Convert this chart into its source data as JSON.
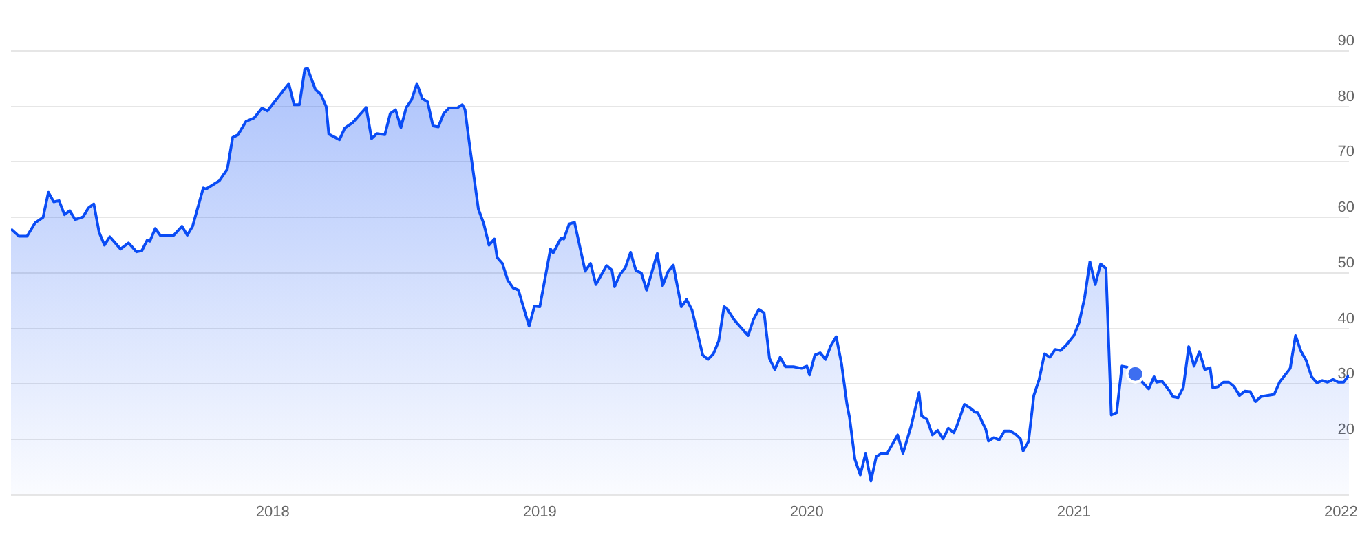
{
  "chart_data": {
    "type": "area",
    "xlim": [
      2017.02,
      2022.03
    ],
    "xticks": [
      2018,
      2019,
      2020,
      2021,
      2022
    ],
    "ylim": [
      10,
      90
    ],
    "yticks": [
      {
        "value": 10,
        "label": null
      },
      20,
      30,
      40,
      50,
      60,
      70,
      80,
      90
    ],
    "grid": "y",
    "marker": "none",
    "series": [
      {
        "color": "#0a4cf5",
        "x": [
          2017.02,
          2017.05,
          2017.08,
          2017.11,
          2017.14,
          2017.16,
          2017.18,
          2017.2,
          2017.22,
          2017.24,
          2017.26,
          2017.29,
          2017.31,
          2017.33,
          2017.35,
          2017.37,
          2017.39,
          2017.43,
          2017.46,
          2017.49,
          2017.51,
          2017.53,
          2017.54,
          2017.56,
          2017.58,
          2017.63,
          2017.66,
          2017.68,
          2017.7,
          2017.74,
          2017.75,
          2017.78,
          2017.8,
          2017.83,
          2017.85,
          2017.87,
          2017.9,
          2017.93,
          2017.96,
          2017.98,
          2018.06,
          2018.08,
          2018.1,
          2018.12,
          2018.13,
          2018.16,
          2018.18,
          2018.2,
          2018.21,
          2018.25,
          2018.27,
          2018.3,
          2018.35,
          2018.37,
          2018.39,
          2018.42,
          2018.44,
          2018.46,
          2018.48,
          2018.5,
          2018.52,
          2018.54,
          2018.56,
          2018.58,
          2018.6,
          2018.62,
          2018.64,
          2018.66,
          2018.69,
          2018.71,
          2018.72,
          2018.74,
          2018.77,
          2018.79,
          2018.81,
          2018.83,
          2018.84,
          2018.86,
          2018.88,
          2018.9,
          2018.92,
          2018.96,
          2018.98,
          2019.0,
          2019.04,
          2019.05,
          2019.08,
          2019.09,
          2019.11,
          2019.13,
          2019.17,
          2019.19,
          2019.21,
          2019.25,
          2019.27,
          2019.28,
          2019.3,
          2019.32,
          2019.34,
          2019.36,
          2019.38,
          2019.4,
          2019.44,
          2019.46,
          2019.48,
          2019.5,
          2019.53,
          2019.55,
          2019.57,
          2019.61,
          2019.63,
          2019.65,
          2019.67,
          2019.69,
          2019.7,
          2019.73,
          2019.78,
          2019.8,
          2019.82,
          2019.84,
          2019.86,
          2019.88,
          2019.9,
          2019.92,
          2019.95,
          2019.98,
          2020.0,
          2020.01,
          2020.03,
          2020.05,
          2020.07,
          2020.09,
          2020.11,
          2020.13,
          2020.15,
          2020.16,
          2020.18,
          2020.2,
          2020.22,
          2020.24,
          2020.26,
          2020.28,
          2020.3,
          2020.34,
          2020.36,
          2020.38,
          2020.39,
          2020.42,
          2020.43,
          2020.45,
          2020.47,
          2020.49,
          2020.51,
          2020.53,
          2020.55,
          2020.56,
          2020.59,
          2020.61,
          2020.63,
          2020.64,
          2020.67,
          2020.68,
          2020.7,
          2020.72,
          2020.74,
          2020.76,
          2020.78,
          2020.8,
          2020.81,
          2020.83,
          2020.85,
          2020.87,
          2020.89,
          2020.91,
          2020.93,
          2020.95,
          2020.97,
          2021.0,
          2021.02,
          2021.04,
          2021.06,
          2021.08,
          2021.1,
          2021.12,
          2021.14,
          2021.16,
          2021.18,
          2021.2,
          2021.23,
          2021.26,
          2021.28,
          2021.3,
          2021.31,
          2021.33,
          2021.36,
          2021.37,
          2021.39,
          2021.41,
          2021.43,
          2021.45,
          2021.47,
          2021.49,
          2021.51,
          2021.52,
          2021.54,
          2021.56,
          2021.58,
          2021.6,
          2021.62,
          2021.64,
          2021.66,
          2021.68,
          2021.7,
          2021.75,
          2021.77,
          2021.81,
          2021.83,
          2021.85,
          2021.87,
          2021.89,
          2021.91,
          2021.93,
          2021.95,
          2021.97,
          2021.99,
          2022.01,
          2022.03
        ],
        "values": [
          57.9,
          56.6,
          56.6,
          59,
          60,
          64.5,
          62.8,
          63,
          60.5,
          61.2,
          59.6,
          60.1,
          61.7,
          62.4,
          57.3,
          55,
          56.5,
          54.3,
          55.4,
          53.8,
          54,
          55.9,
          55.7,
          58,
          56.7,
          56.8,
          58.4,
          56.8,
          58.4,
          65.3,
          65.1,
          66,
          66.6,
          68.7,
          74.4,
          74.9,
          77.3,
          77.9,
          79.7,
          79.2,
          84.1,
          80.3,
          80.3,
          86.7,
          86.9,
          83,
          82.2,
          80,
          75,
          74,
          76.1,
          77.1,
          79.8,
          74.2,
          75.1,
          74.9,
          78.7,
          79.4,
          76.2,
          79.8,
          81.2,
          84.1,
          81.4,
          80.8,
          76.5,
          76.3,
          78.7,
          79.7,
          79.7,
          80.3,
          79.4,
          72,
          61.5,
          58.9,
          55,
          56.1,
          52.8,
          51.7,
          48.7,
          47.3,
          46.9,
          40.4,
          44,
          43.9,
          54.3,
          53.6,
          56.3,
          56.1,
          58.8,
          59.1,
          50.3,
          51.7,
          47.9,
          51.3,
          50.5,
          47.5,
          49.7,
          50.9,
          53.7,
          50.4,
          50,
          46.9,
          53.5,
          47.7,
          50.2,
          51.4,
          43.9,
          45.2,
          43.3,
          35.2,
          34.4,
          35.4,
          37.7,
          43.9,
          43.6,
          41.4,
          38.7,
          41.6,
          43.4,
          42.8,
          34.6,
          32.6,
          34.8,
          33.1,
          33.1,
          32.8,
          33.2,
          31.6,
          35.2,
          35.6,
          34.4,
          36.9,
          38.5,
          33.6,
          26.4,
          23.9,
          16.4,
          13.6,
          17.4,
          12.5,
          16.9,
          17.5,
          17.4,
          20.8,
          17.5,
          20.7,
          22.3,
          28.4,
          24.2,
          23.6,
          20.8,
          21.6,
          20.1,
          22,
          21.2,
          22.2,
          26.3,
          25.7,
          24.9,
          24.8,
          21.8,
          19.7,
          20.3,
          19.9,
          21.5,
          21.5,
          21,
          20.1,
          17.9,
          19.6,
          27.9,
          30.8,
          35.4,
          34.8,
          36.2,
          36,
          36.9,
          38.7,
          41.1,
          45.5,
          52,
          47.9,
          51.6,
          50.8,
          24.4,
          24.8,
          33.2,
          33,
          31.8,
          30.1,
          29.1,
          31.3,
          30.3,
          30.5,
          28.6,
          27.7,
          27.5,
          29.4,
          36.7,
          33.2,
          35.8,
          32.6,
          32.9,
          29.3,
          29.5,
          30.3,
          30.3,
          29.5,
          27.9,
          28.7,
          28.6,
          26.8,
          27.7,
          28.1,
          30.3,
          32.8,
          38.7,
          35.9,
          34.2,
          31.3,
          30.2,
          30.6,
          30.3,
          30.8,
          30.3,
          30.3,
          31.6
        ]
      },
      {
        "type": "scatter",
        "color": "#3d6ef0",
        "marker": "circle",
        "x": [
          2021.23
        ],
        "values": [
          31.8
        ]
      }
    ]
  }
}
